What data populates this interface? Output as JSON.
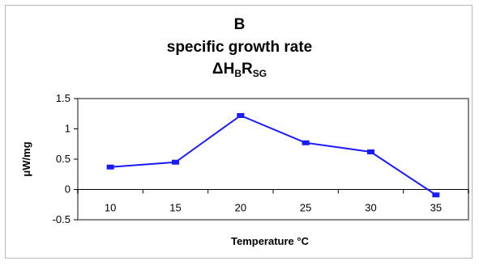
{
  "title": {
    "line1": "B",
    "line2": "specific growth rate",
    "line3_main": "ΔH",
    "line3_sub1": "B",
    "line3_mid": "R",
    "line3_sub2": "SG"
  },
  "chart_data": {
    "type": "line",
    "categories": [
      "10",
      "15",
      "20",
      "25",
      "30",
      "35"
    ],
    "series": [
      {
        "values": [
          0.37,
          0.45,
          1.22,
          0.77,
          0.62,
          -0.09
        ]
      }
    ],
    "xlabel": "Temperature °C",
    "ylabel": "μW/mg",
    "ylim": [
      -0.5,
      1.5
    ],
    "yticks": [
      "-0.5",
      "0",
      "0.5",
      "1",
      "1.5"
    ],
    "ytick_values": [
      -0.5,
      0,
      0.5,
      1,
      1.5
    ],
    "grid": false,
    "line_color": "#1a1aff",
    "plot_border_color": "#888888"
  }
}
